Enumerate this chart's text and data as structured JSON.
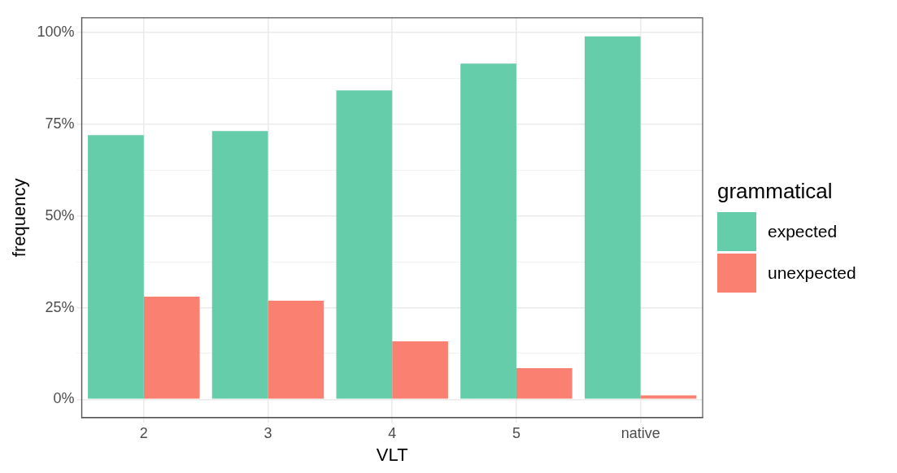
{
  "chart_data": {
    "type": "bar",
    "xlabel": "VLT",
    "ylabel": "frequency",
    "legend_title": "grammatical",
    "categories": [
      "2",
      "3",
      "4",
      "5",
      "native"
    ],
    "series": [
      {
        "name": "expected",
        "color": "#66cdaa",
        "values": [
          72.0,
          73.1,
          84.2,
          91.5,
          98.9
        ]
      },
      {
        "name": "unexpected",
        "color": "#fa8072",
        "values": [
          28.0,
          26.9,
          15.8,
          8.5,
          1.1
        ]
      }
    ],
    "ylim": [
      -5,
      104
    ],
    "yticks": [
      {
        "value": 0,
        "label": "0%"
      },
      {
        "value": 12.5,
        "label": null
      },
      {
        "value": 25,
        "label": "25%"
      },
      {
        "value": 37.5,
        "label": null
      },
      {
        "value": 50,
        "label": "50%"
      },
      {
        "value": 62.5,
        "label": null
      },
      {
        "value": 75,
        "label": "75%"
      },
      {
        "value": 87.5,
        "label": null
      },
      {
        "value": 100,
        "label": "100%"
      }
    ],
    "grid": true,
    "legend": "right"
  }
}
